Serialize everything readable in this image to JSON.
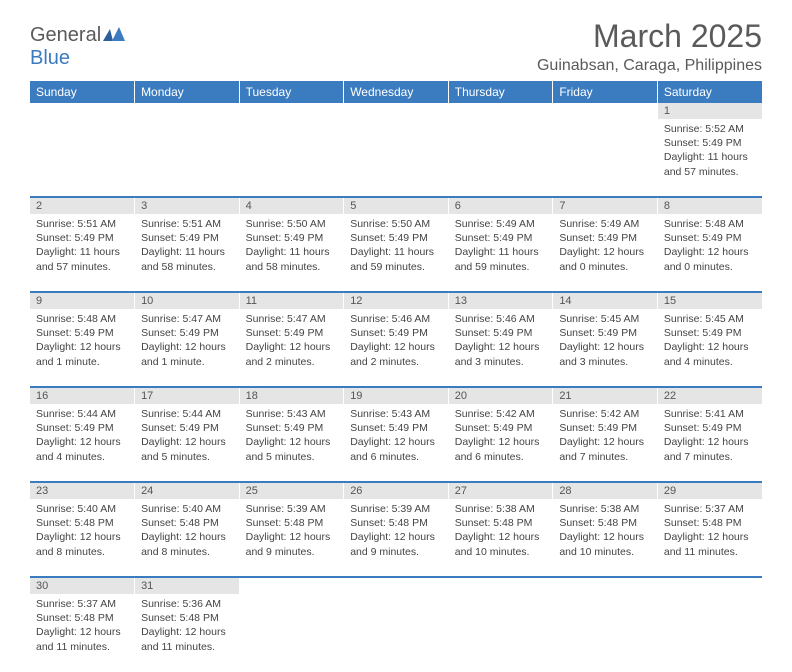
{
  "logo": {
    "text1": "General",
    "text2": "Blue"
  },
  "title": "March 2025",
  "location": "Guinabsan, Caraga, Philippines",
  "colors": {
    "header_bg": "#3b7bbf",
    "header_fg": "#ffffff",
    "daynum_bg": "#e5e5e5",
    "text": "#444444",
    "title": "#5a5a5a"
  },
  "weekdays": [
    "Sunday",
    "Monday",
    "Tuesday",
    "Wednesday",
    "Thursday",
    "Friday",
    "Saturday"
  ],
  "weeks": [
    [
      null,
      null,
      null,
      null,
      null,
      null,
      {
        "n": "1",
        "sr": "5:52 AM",
        "ss": "5:49 PM",
        "dl": "11 hours and 57 minutes."
      }
    ],
    [
      {
        "n": "2",
        "sr": "5:51 AM",
        "ss": "5:49 PM",
        "dl": "11 hours and 57 minutes."
      },
      {
        "n": "3",
        "sr": "5:51 AM",
        "ss": "5:49 PM",
        "dl": "11 hours and 58 minutes."
      },
      {
        "n": "4",
        "sr": "5:50 AM",
        "ss": "5:49 PM",
        "dl": "11 hours and 58 minutes."
      },
      {
        "n": "5",
        "sr": "5:50 AM",
        "ss": "5:49 PM",
        "dl": "11 hours and 59 minutes."
      },
      {
        "n": "6",
        "sr": "5:49 AM",
        "ss": "5:49 PM",
        "dl": "11 hours and 59 minutes."
      },
      {
        "n": "7",
        "sr": "5:49 AM",
        "ss": "5:49 PM",
        "dl": "12 hours and 0 minutes."
      },
      {
        "n": "8",
        "sr": "5:48 AM",
        "ss": "5:49 PM",
        "dl": "12 hours and 0 minutes."
      }
    ],
    [
      {
        "n": "9",
        "sr": "5:48 AM",
        "ss": "5:49 PM",
        "dl": "12 hours and 1 minute."
      },
      {
        "n": "10",
        "sr": "5:47 AM",
        "ss": "5:49 PM",
        "dl": "12 hours and 1 minute."
      },
      {
        "n": "11",
        "sr": "5:47 AM",
        "ss": "5:49 PM",
        "dl": "12 hours and 2 minutes."
      },
      {
        "n": "12",
        "sr": "5:46 AM",
        "ss": "5:49 PM",
        "dl": "12 hours and 2 minutes."
      },
      {
        "n": "13",
        "sr": "5:46 AM",
        "ss": "5:49 PM",
        "dl": "12 hours and 3 minutes."
      },
      {
        "n": "14",
        "sr": "5:45 AM",
        "ss": "5:49 PM",
        "dl": "12 hours and 3 minutes."
      },
      {
        "n": "15",
        "sr": "5:45 AM",
        "ss": "5:49 PM",
        "dl": "12 hours and 4 minutes."
      }
    ],
    [
      {
        "n": "16",
        "sr": "5:44 AM",
        "ss": "5:49 PM",
        "dl": "12 hours and 4 minutes."
      },
      {
        "n": "17",
        "sr": "5:44 AM",
        "ss": "5:49 PM",
        "dl": "12 hours and 5 minutes."
      },
      {
        "n": "18",
        "sr": "5:43 AM",
        "ss": "5:49 PM",
        "dl": "12 hours and 5 minutes."
      },
      {
        "n": "19",
        "sr": "5:43 AM",
        "ss": "5:49 PM",
        "dl": "12 hours and 6 minutes."
      },
      {
        "n": "20",
        "sr": "5:42 AM",
        "ss": "5:49 PM",
        "dl": "12 hours and 6 minutes."
      },
      {
        "n": "21",
        "sr": "5:42 AM",
        "ss": "5:49 PM",
        "dl": "12 hours and 7 minutes."
      },
      {
        "n": "22",
        "sr": "5:41 AM",
        "ss": "5:49 PM",
        "dl": "12 hours and 7 minutes."
      }
    ],
    [
      {
        "n": "23",
        "sr": "5:40 AM",
        "ss": "5:48 PM",
        "dl": "12 hours and 8 minutes."
      },
      {
        "n": "24",
        "sr": "5:40 AM",
        "ss": "5:48 PM",
        "dl": "12 hours and 8 minutes."
      },
      {
        "n": "25",
        "sr": "5:39 AM",
        "ss": "5:48 PM",
        "dl": "12 hours and 9 minutes."
      },
      {
        "n": "26",
        "sr": "5:39 AM",
        "ss": "5:48 PM",
        "dl": "12 hours and 9 minutes."
      },
      {
        "n": "27",
        "sr": "5:38 AM",
        "ss": "5:48 PM",
        "dl": "12 hours and 10 minutes."
      },
      {
        "n": "28",
        "sr": "5:38 AM",
        "ss": "5:48 PM",
        "dl": "12 hours and 10 minutes."
      },
      {
        "n": "29",
        "sr": "5:37 AM",
        "ss": "5:48 PM",
        "dl": "12 hours and 11 minutes."
      }
    ],
    [
      {
        "n": "30",
        "sr": "5:37 AM",
        "ss": "5:48 PM",
        "dl": "12 hours and 11 minutes."
      },
      {
        "n": "31",
        "sr": "5:36 AM",
        "ss": "5:48 PM",
        "dl": "12 hours and 11 minutes."
      },
      null,
      null,
      null,
      null,
      null
    ]
  ],
  "labels": {
    "sunrise": "Sunrise:",
    "sunset": "Sunset:",
    "daylight": "Daylight:"
  }
}
